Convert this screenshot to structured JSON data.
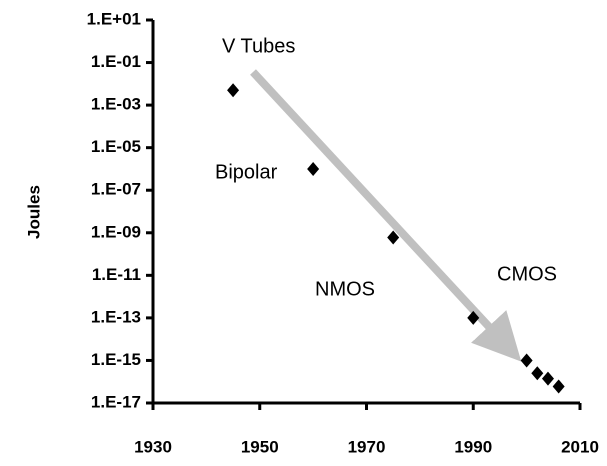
{
  "chart_data": {
    "type": "scatter",
    "y_label": "Joules",
    "annotations": [
      "V Tubes",
      "Bipolar",
      "NMOS",
      "CMOS"
    ],
    "x": [
      1945,
      1960,
      1975,
      1990,
      2000,
      2002,
      2004,
      2006
    ],
    "values": [
      0.005,
      1e-06,
      6e-10,
      1e-13,
      1e-15,
      2.5e-16,
      1.4e-16,
      6e-17
    ],
    "color": "#000000",
    "log_y": true,
    "xlim": [
      1930,
      2010
    ],
    "xticks": [
      1930,
      1950,
      1970,
      1990,
      2010
    ],
    "ylim": [
      1e-17,
      10
    ],
    "yticks": [
      {
        "value": 10,
        "label": "1.E+01"
      },
      {
        "value": 0.1,
        "label": "1.E-01"
      },
      {
        "value": 0.001,
        "label": "1.E-03"
      },
      {
        "value": 1e-05,
        "label": "1.E-05"
      },
      {
        "value": 1e-07,
        "label": "1.E-07"
      },
      {
        "value": 1e-09,
        "label": "1.E-09"
      },
      {
        "value": 1e-11,
        "label": "1.E-11"
      },
      {
        "value": 1e-13,
        "label": "1.E-13"
      },
      {
        "value": 1e-15,
        "label": "1.E-15"
      },
      {
        "value": 1e-17,
        "label": "1.E-17"
      }
    ]
  }
}
